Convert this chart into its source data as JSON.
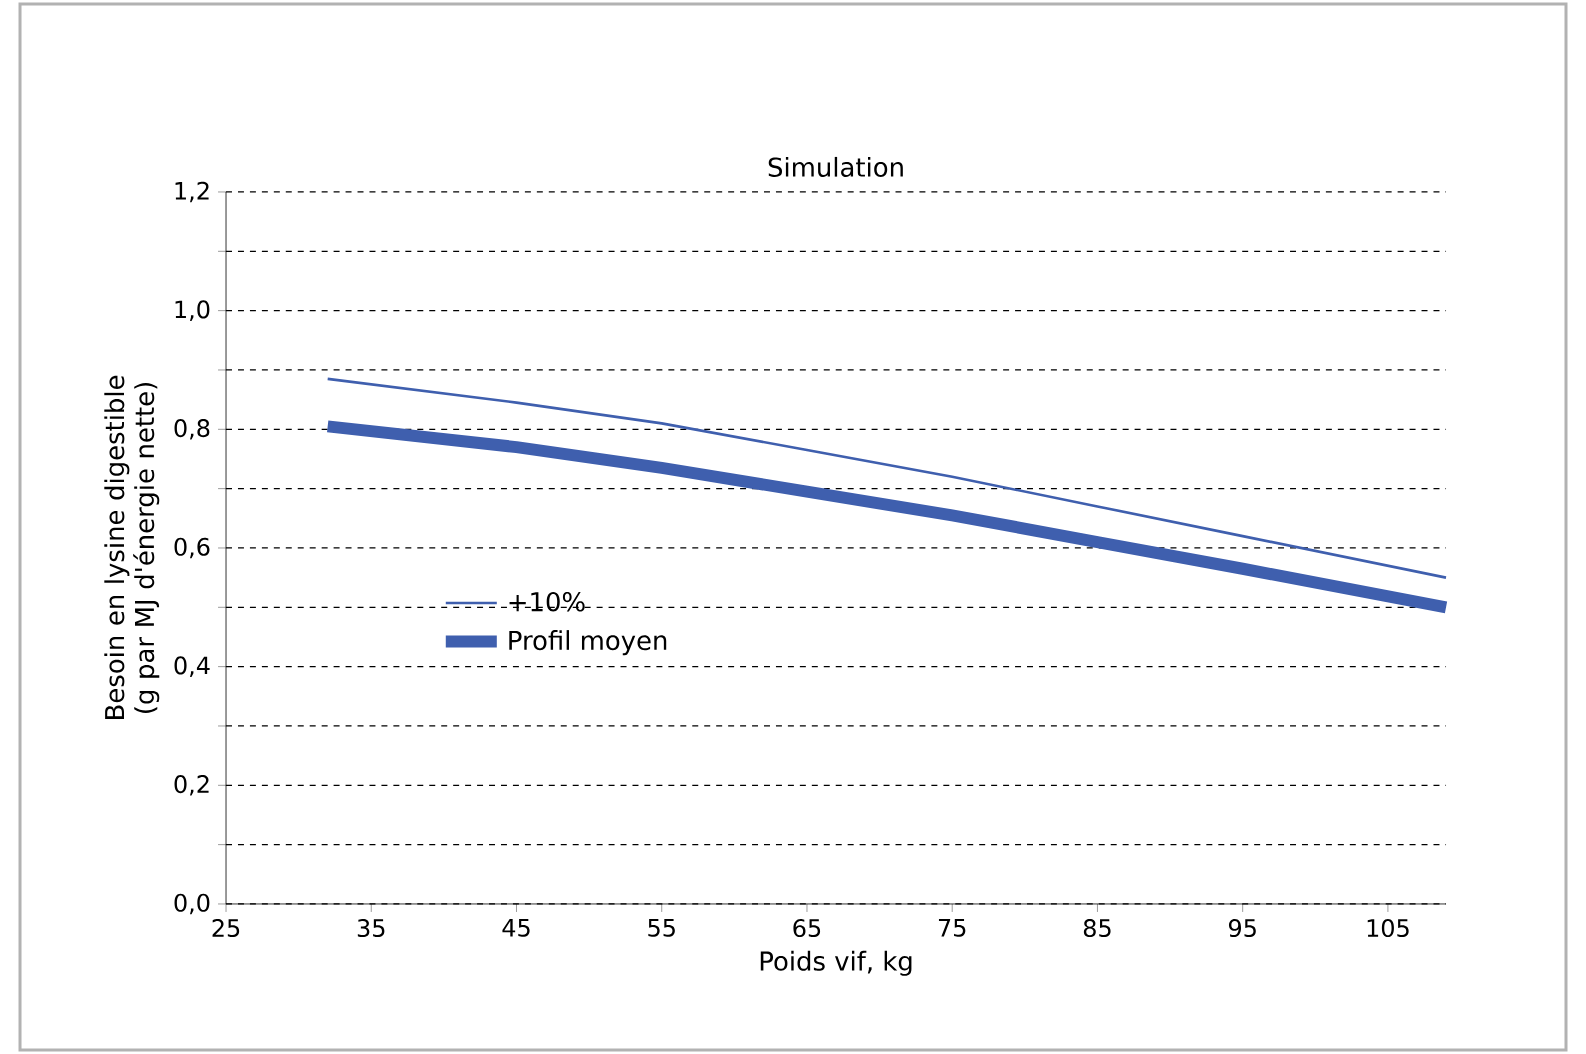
{
  "chart_data": {
    "type": "line",
    "title": "Simulation",
    "xlabel": "Poids vif, kg",
    "ylabel": "Besoin en lysine digestible (g par MJ d'énergie nette)",
    "xlim": [
      25,
      109
    ],
    "ylim": [
      0,
      1.2
    ],
    "xticks": [
      25,
      35,
      45,
      55,
      65,
      75,
      85,
      95,
      105
    ],
    "yticks": [
      {
        "value": 0,
        "label": "0,0"
      },
      {
        "value": 0.1,
        "label": null
      },
      {
        "value": 0.2,
        "label": "0,2"
      },
      {
        "value": 0.3,
        "label": null
      },
      {
        "value": 0.4,
        "label": "0,4"
      },
      {
        "value": 0.5,
        "label": null
      },
      {
        "value": 0.6,
        "label": "0,6"
      },
      {
        "value": 0.7,
        "label": null
      },
      {
        "value": 0.8,
        "label": "0,8"
      },
      {
        "value": 0.9,
        "label": null
      },
      {
        "value": 1.0,
        "label": "1,0"
      },
      {
        "value": 1.1,
        "label": null
      },
      {
        "value": 1.2,
        "label": "1,2"
      }
    ],
    "grid": "y",
    "legend": "left",
    "line_style": "solid",
    "marker": "none",
    "x": [
      32,
      45,
      55,
      65,
      75,
      85,
      95,
      109
    ],
    "series": [
      {
        "name": "+10%",
        "color": "#3f5fae",
        "values": [
          0.885,
          0.845,
          0.81,
          0.765,
          0.72,
          0.67,
          0.62,
          0.55
        ]
      },
      {
        "name": "Profil moyen",
        "color": "#3f5fae",
        "values": [
          0.805,
          0.77,
          0.735,
          0.695,
          0.655,
          0.61,
          0.565,
          0.5
        ]
      }
    ]
  }
}
